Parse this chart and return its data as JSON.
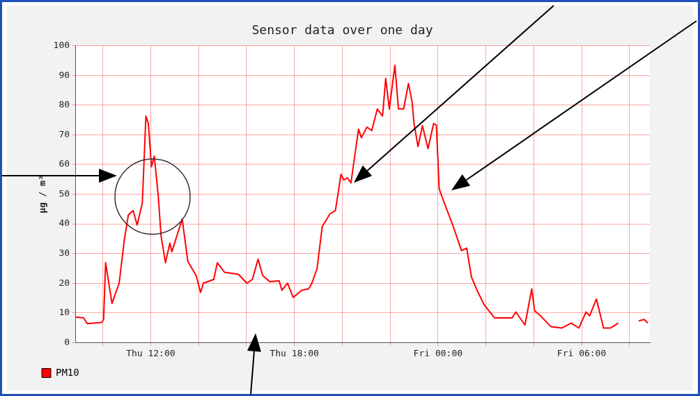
{
  "chart_data": {
    "type": "line",
    "title": "Sensor data over one day",
    "ylabel": "µg / m³",
    "xlim": [
      "--01-02T08:51",
      "--01-03T08:51"
    ],
    "xticks": [
      {
        "value": "--01-02T10:00",
        "label": null
      },
      {
        "value": "--01-02T12:00",
        "label": "Thu 12:00"
      },
      {
        "value": "--01-02T14:00",
        "label": null
      },
      {
        "value": "--01-02T16:00",
        "label": null
      },
      {
        "value": "--01-02T18:00",
        "label": "Thu 18:00"
      },
      {
        "value": "--01-02T20:00",
        "label": null
      },
      {
        "value": "--01-02T22:00",
        "label": null
      },
      {
        "value": "--01-03T00:00",
        "label": "Fri 00:00"
      },
      {
        "value": "--01-03T02:00",
        "label": null
      },
      {
        "value": "--01-03T04:00",
        "label": null
      },
      {
        "value": "--01-03T06:00",
        "label": "Fri 06:00"
      },
      {
        "value": "--01-03T08:00",
        "label": null
      }
    ],
    "ylim": [
      0,
      100
    ],
    "yticks": [
      0,
      10,
      20,
      30,
      40,
      50,
      60,
      70,
      80,
      90,
      100
    ],
    "grid": true,
    "legend": "bottom left",
    "marker": "none",
    "line_style": "solid",
    "series": [
      {
        "name": "PM10",
        "color": "#ff0000",
        "x": [
          "--01-02T08:52",
          "--01-02T09:12",
          "--01-02T09:21",
          "--01-02T09:57",
          "--01-02T10:02",
          "--01-02T10:07",
          "--01-02T10:23",
          "--01-02T10:41",
          "--01-02T10:54",
          "--01-02T11:04",
          "--01-02T11:16",
          "--01-02T11:26",
          "--01-02T11:39",
          "--01-02T11:48",
          "--01-02T11:54",
          "--01-02T12:02",
          "--01-02T12:09",
          "--01-02T12:19",
          "--01-02T12:26",
          "--01-02T12:37",
          "--01-02T12:48",
          "--01-02T12:53",
          "--01-02T13:19",
          "--01-02T13:33",
          "--01-02T13:54",
          "--01-02T14:05",
          "--01-02T14:12",
          "--01-02T14:38",
          "--01-02T14:47",
          "--01-02T15:05",
          "--01-02T15:40",
          "--01-02T16:01",
          "--01-02T16:15",
          "--01-02T16:29",
          "--01-02T16:41",
          "--01-02T16:59",
          "--01-02T17:22",
          "--01-02T17:29",
          "--01-02T17:43",
          "--01-02T17:57",
          "--01-02T18:18",
          "--01-02T18:36",
          "--01-02T18:44",
          "--01-02T18:57",
          "--01-02T19:10",
          "--01-02T19:29",
          "--01-02T19:43",
          "--01-02T19:57",
          "--01-02T20:04",
          "--01-02T20:13",
          "--01-02T20:22",
          "--01-02T20:30",
          "--01-02T20:41",
          "--01-02T20:48",
          "--01-02T21:02",
          "--01-02T21:14",
          "--01-02T21:28",
          "--01-02T21:41",
          "--01-02T21:49",
          "--01-02T21:58",
          "--01-02T22:12",
          "--01-02T22:21",
          "--01-02T22:34",
          "--01-02T22:46",
          "--01-02T22:55",
          "--01-02T23:00",
          "--01-02T23:10",
          "--01-02T23:21",
          "--01-02T23:35",
          "--01-02T23:49",
          "--01-02T23:56",
          "--01-03T00:03",
          "--01-03T00:16",
          "--01-03T00:37",
          "--01-03T00:59",
          "--01-03T01:12",
          "--01-03T01:24",
          "--01-03T01:38",
          "--01-03T01:56",
          "--01-03T02:22",
          "--01-03T03:06",
          "--01-03T03:15",
          "--01-03T03:38",
          "--01-03T03:55",
          "--01-03T04:02",
          "--01-03T04:17",
          "--01-03T04:43",
          "--01-03T05:10",
          "--01-03T05:34",
          "--01-03T05:53",
          "--01-03T06:11",
          "--01-03T06:20",
          "--01-03T06:37",
          "--01-03T06:55",
          "--01-03T07:12",
          "--01-03T07:32",
          "--01-03T07:54",
          "--01-03T08:23",
          "--01-03T08:37",
          "--01-03T08:46"
        ],
        "values": [
          8.6,
          8.3,
          6.4,
          6.8,
          7.8,
          26.9,
          13.2,
          20,
          34.7,
          43,
          44.5,
          39.6,
          47,
          76.3,
          73.8,
          59.2,
          62.8,
          49.4,
          36,
          26.9,
          33.5,
          30.6,
          41.6,
          27.4,
          22.5,
          16.9,
          20,
          21.3,
          26.9,
          23.7,
          23,
          20,
          21.3,
          28.1,
          22.5,
          20.5,
          20.8,
          17.6,
          20,
          15.2,
          17.6,
          18.1,
          20,
          24.9,
          39.1,
          43.3,
          44.5,
          56.7,
          54.8,
          55.5,
          53.8,
          61.6,
          71.9,
          69,
          72.6,
          71.4,
          78.7,
          76.3,
          89,
          78.7,
          93.4,
          78.7,
          78.7,
          87.3,
          81.2,
          73.8,
          66,
          73.1,
          65.3,
          73.8,
          73.3,
          51.8,
          47,
          39.6,
          31,
          31.8,
          22,
          17.6,
          12.7,
          8.3,
          8.3,
          10.3,
          5.9,
          18.1,
          10.8,
          9,
          5.4,
          4.9,
          6.6,
          4.9,
          10.3,
          9,
          14.7,
          4.9,
          4.9,
          6.6,
          null,
          7.3,
          7.8,
          6.6
        ]
      }
    ]
  }
}
